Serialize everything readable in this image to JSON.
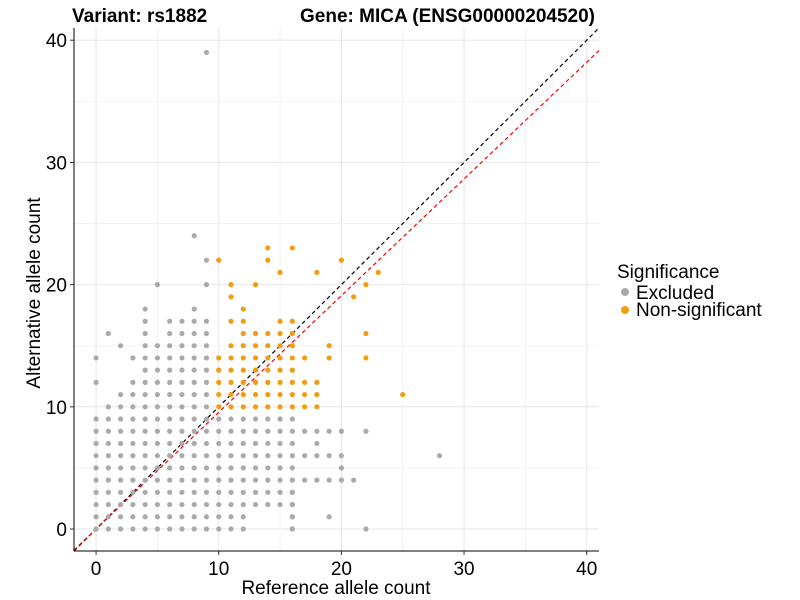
{
  "chart_data": {
    "type": "scatter",
    "title_left": "Variant: rs1882",
    "title_right": "Gene: MICA (ENSG00000204520)",
    "xlabel": "Reference allele count",
    "ylabel": "Alternative allele count",
    "xlim": [
      -1.8,
      41
    ],
    "ylim": [
      -1.8,
      41
    ],
    "xticks": [
      0,
      10,
      20,
      30,
      40
    ],
    "yticks": [
      0,
      10,
      20,
      30,
      40
    ],
    "grid": true,
    "legend": {
      "title": "Significance",
      "position": "right",
      "entries": [
        {
          "label": "Excluded",
          "color": "#aaaaaa"
        },
        {
          "label": "Non-significant",
          "color": "#f39c12"
        }
      ]
    },
    "reference_lines": [
      {
        "name": "identity",
        "slope": 1.0,
        "color": "#000000",
        "style": "dashed"
      },
      {
        "name": "fit",
        "slope": 0.955,
        "color": "#ff0000",
        "style": "dashed"
      }
    ],
    "series": [
      {
        "name": "Excluded",
        "color": "#aaaaaa",
        "points": [
          [
            9,
            39
          ],
          [
            8,
            24
          ],
          [
            9,
            22
          ],
          [
            5,
            20
          ],
          [
            9,
            20
          ],
          [
            4,
            18
          ],
          [
            8,
            18
          ],
          [
            4,
            17
          ],
          [
            6,
            17
          ],
          [
            7,
            17
          ],
          [
            8,
            17
          ],
          [
            9,
            17
          ],
          [
            1,
            16
          ],
          [
            4,
            16
          ],
          [
            6,
            16
          ],
          [
            7,
            16
          ],
          [
            8,
            16
          ],
          [
            9,
            16
          ],
          [
            2,
            15
          ],
          [
            4,
            15
          ],
          [
            5,
            15
          ],
          [
            6,
            15
          ],
          [
            7,
            15
          ],
          [
            8,
            15
          ],
          [
            9,
            15
          ],
          [
            0,
            14
          ],
          [
            3,
            14
          ],
          [
            4,
            14
          ],
          [
            5,
            14
          ],
          [
            6,
            14
          ],
          [
            7,
            14
          ],
          [
            8,
            14
          ],
          [
            9,
            14
          ],
          [
            0,
            12
          ],
          [
            28,
            6
          ],
          [
            22,
            8
          ],
          [
            22,
            0
          ],
          [
            20,
            4
          ],
          [
            20,
            5
          ],
          [
            20,
            6
          ],
          [
            21,
            4
          ],
          [
            19,
            8
          ],
          [
            20,
            8
          ],
          [
            19,
            4
          ],
          [
            18,
            4
          ],
          [
            19,
            1
          ],
          [
            16,
            0
          ],
          [
            16,
            1
          ],
          [
            16,
            2
          ],
          [
            16,
            3
          ],
          [
            17,
            4
          ],
          [
            17,
            6
          ],
          [
            18,
            6
          ],
          [
            19,
            6
          ],
          [
            18,
            7
          ],
          [
            17,
            8
          ],
          [
            18,
            8
          ]
        ],
        "grid_block": {
          "x_from": 0,
          "x_to": 16,
          "y_from": 0,
          "y_to": 13
        }
      },
      {
        "name": "Non-significant",
        "color": "#f39c12",
        "points": [
          [
            14,
            23
          ],
          [
            16,
            23
          ],
          [
            10,
            22
          ],
          [
            14,
            22
          ],
          [
            20,
            22
          ],
          [
            15,
            21
          ],
          [
            18,
            21
          ],
          [
            23,
            21
          ],
          [
            11,
            20
          ],
          [
            13,
            20
          ],
          [
            22,
            20
          ],
          [
            21,
            19
          ],
          [
            11,
            19
          ],
          [
            12,
            18
          ],
          [
            11,
            17
          ],
          [
            15,
            17
          ],
          [
            12,
            17
          ],
          [
            16,
            17
          ],
          [
            15,
            16
          ],
          [
            15,
            15
          ],
          [
            16,
            15
          ],
          [
            16,
            14
          ],
          [
            17,
            14
          ],
          [
            19,
            14
          ],
          [
            22,
            14
          ],
          [
            19,
            15
          ],
          [
            22,
            16
          ],
          [
            25,
            11
          ],
          [
            15,
            12
          ],
          [
            16,
            12
          ],
          [
            17,
            12
          ],
          [
            18,
            12
          ],
          [
            11,
            12
          ],
          [
            12,
            12
          ],
          [
            13,
            12
          ],
          [
            14,
            12
          ],
          [
            10,
            13
          ],
          [
            11,
            13
          ],
          [
            12,
            13
          ],
          [
            13,
            13
          ],
          [
            14,
            13
          ],
          [
            15,
            13
          ],
          [
            16,
            13
          ],
          [
            10,
            11
          ],
          [
            11,
            11
          ],
          [
            12,
            11
          ],
          [
            13,
            11
          ],
          [
            14,
            11
          ],
          [
            15,
            11
          ],
          [
            16,
            11
          ],
          [
            17,
            11
          ],
          [
            18,
            11
          ],
          [
            10,
            10
          ],
          [
            11,
            10
          ],
          [
            12,
            10
          ],
          [
            13,
            10
          ],
          [
            14,
            10
          ],
          [
            15,
            10
          ],
          [
            16,
            10
          ],
          [
            17,
            10
          ],
          [
            18,
            10
          ],
          [
            10,
            12
          ],
          [
            10,
            14
          ],
          [
            11,
            14
          ],
          [
            12,
            14
          ],
          [
            13,
            14
          ],
          [
            14,
            14
          ],
          [
            15,
            14
          ],
          [
            11,
            15
          ],
          [
            12,
            15
          ],
          [
            13,
            15
          ],
          [
            14,
            15
          ],
          [
            12,
            16
          ],
          [
            13,
            16
          ],
          [
            14,
            16
          ],
          [
            16,
            16
          ]
        ]
      }
    ]
  }
}
